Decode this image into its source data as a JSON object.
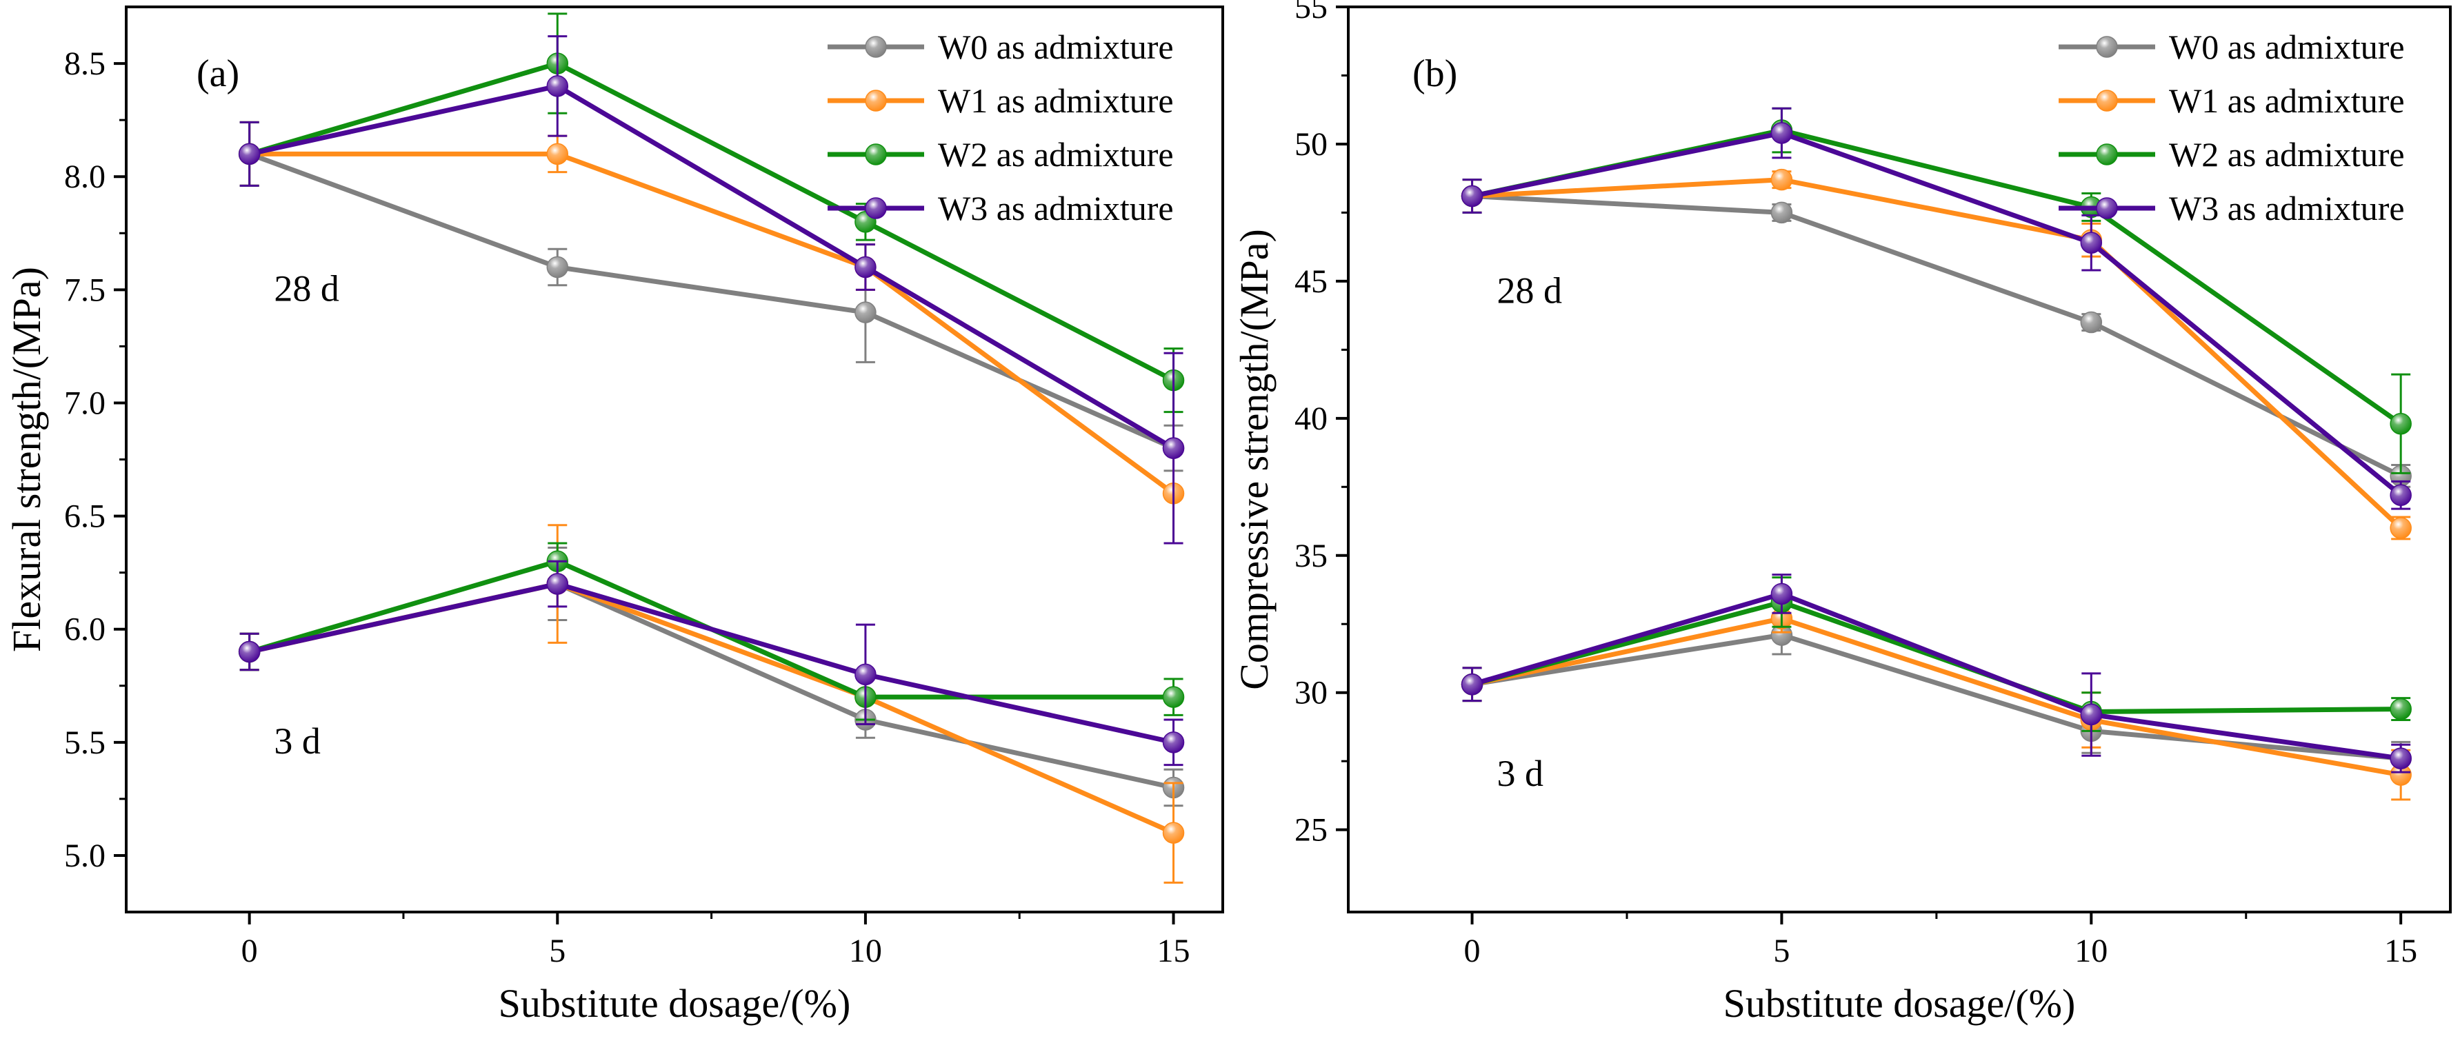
{
  "chart_data": [
    {
      "type": "line",
      "panel_label": "(a)",
      "title": "",
      "xlabel": "Substitute dosage/(%)",
      "ylabel": "Flexural strength/(MPa)",
      "x": [
        0,
        5,
        10,
        15
      ],
      "xlim": [
        -2,
        15.8
      ],
      "ylim": [
        4.75,
        8.75
      ],
      "xticks": [
        0,
        5,
        10,
        15
      ],
      "yticks": [
        5.0,
        5.5,
        6.0,
        6.5,
        7.0,
        7.5,
        8.0,
        8.5
      ],
      "ytick_labels": [
        "5.0",
        "5.5",
        "6.0",
        "6.5",
        "7.0",
        "7.5",
        "8.0",
        "8.5"
      ],
      "grid": false,
      "legend_position": "top-right",
      "annotations": [
        {
          "text": "28 d",
          "x": 0.4,
          "y": 7.45
        },
        {
          "text": "3 d",
          "x": 0.4,
          "y": 5.45
        }
      ],
      "series": [
        {
          "name": "W0 as admixture",
          "color": "#808080",
          "age": "28 d",
          "values": [
            8.1,
            7.6,
            7.4,
            6.8
          ],
          "errors": [
            0.14,
            0.08,
            0.22,
            0.1
          ]
        },
        {
          "name": "W1 as admixture",
          "color": "#ff8c1a",
          "age": "28 d",
          "values": [
            8.1,
            8.1,
            7.6,
            6.6
          ],
          "errors": [
            0.14,
            0.08,
            0.1,
            0.22
          ]
        },
        {
          "name": "W2 as admixture",
          "color": "#109010",
          "age": "28 d",
          "values": [
            8.1,
            8.5,
            7.8,
            7.1
          ],
          "errors": [
            0.14,
            0.22,
            0.08,
            0.14
          ]
        },
        {
          "name": "W3 as admixture",
          "color": "#4b0896",
          "age": "28 d",
          "values": [
            8.1,
            8.4,
            7.6,
            6.8
          ],
          "errors": [
            0.14,
            0.22,
            0.1,
            0.42
          ]
        },
        {
          "name": "W0 as admixture",
          "color": "#808080",
          "age": "3 d",
          "values": [
            5.9,
            6.2,
            5.6,
            5.3
          ],
          "errors": [
            0.08,
            0.16,
            0.08,
            0.08
          ]
        },
        {
          "name": "W1 as admixture",
          "color": "#ff8c1a",
          "age": "3 d",
          "values": [
            5.9,
            6.2,
            5.7,
            5.1
          ],
          "errors": [
            0.08,
            0.26,
            0.1,
            0.22
          ]
        },
        {
          "name": "W2 as admixture",
          "color": "#109010",
          "age": "3 d",
          "values": [
            5.9,
            6.3,
            5.7,
            5.7
          ],
          "errors": [
            0.08,
            0.08,
            0.1,
            0.08
          ]
        },
        {
          "name": "W3 as admixture",
          "color": "#4b0896",
          "age": "3 d",
          "values": [
            5.9,
            6.2,
            5.8,
            5.5
          ],
          "errors": [
            0.08,
            0.1,
            0.22,
            0.1
          ]
        }
      ]
    },
    {
      "type": "line",
      "panel_label": "(b)",
      "title": "",
      "xlabel": "Substitute dosage/(%)",
      "ylabel": "Compressive strength/(MPa)",
      "x": [
        0,
        5,
        10,
        15
      ],
      "xlim": [
        -2,
        15.8
      ],
      "ylim": [
        22,
        55
      ],
      "xticks": [
        0,
        5,
        10,
        15
      ],
      "yticks": [
        25,
        30,
        35,
        40,
        45,
        50,
        55
      ],
      "ytick_labels": [
        "25",
        "30",
        "35",
        "40",
        "45",
        "50",
        "55"
      ],
      "grid": false,
      "legend_position": "top-right",
      "annotations": [
        {
          "text": "28 d",
          "x": 0.4,
          "y": 44.2
        },
        {
          "text": "3 d",
          "x": 0.4,
          "y": 26.6
        }
      ],
      "series": [
        {
          "name": "W0 as admixture",
          "color": "#808080",
          "age": "28 d",
          "values": [
            48.1,
            47.5,
            43.5,
            37.9
          ],
          "errors": [
            0.6,
            0.3,
            0.3,
            0.4
          ]
        },
        {
          "name": "W1 as admixture",
          "color": "#ff8c1a",
          "age": "28 d",
          "values": [
            48.1,
            48.7,
            46.5,
            36.0
          ],
          "errors": [
            0.6,
            0.3,
            0.6,
            0.4
          ]
        },
        {
          "name": "W2 as admixture",
          "color": "#109010",
          "age": "28 d",
          "values": [
            48.1,
            50.5,
            47.7,
            39.8
          ],
          "errors": [
            0.6,
            0.8,
            0.5,
            1.8
          ]
        },
        {
          "name": "W3 as admixture",
          "color": "#4b0896",
          "age": "28 d",
          "values": [
            48.1,
            50.4,
            46.4,
            37.2
          ],
          "errors": [
            0.6,
            0.9,
            1.0,
            0.5
          ]
        },
        {
          "name": "W0 as admixture",
          "color": "#808080",
          "age": "3 d",
          "values": [
            30.3,
            32.1,
            28.6,
            27.6
          ],
          "errors": [
            0.6,
            0.7,
            0.8,
            0.6
          ]
        },
        {
          "name": "W1 as admixture",
          "color": "#ff8c1a",
          "age": "3 d",
          "values": [
            30.3,
            32.7,
            29.0,
            27.0
          ],
          "errors": [
            0.6,
            0.5,
            1.0,
            0.9
          ]
        },
        {
          "name": "W2 as admixture",
          "color": "#109010",
          "age": "3 d",
          "values": [
            30.3,
            33.3,
            29.3,
            29.4
          ],
          "errors": [
            0.6,
            0.9,
            0.7,
            0.4
          ]
        },
        {
          "name": "W3 as admixture",
          "color": "#4b0896",
          "age": "3 d",
          "values": [
            30.3,
            33.6,
            29.2,
            27.6
          ],
          "errors": [
            0.6,
            0.7,
            1.5,
            0.5
          ]
        }
      ]
    }
  ]
}
